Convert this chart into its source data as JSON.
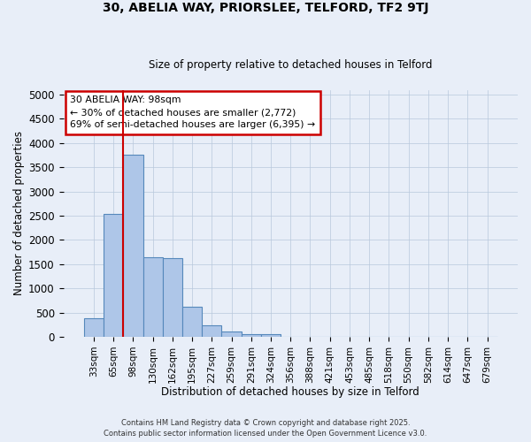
{
  "title1": "30, ABELIA WAY, PRIORSLEE, TELFORD, TF2 9TJ",
  "title2": "Size of property relative to detached houses in Telford",
  "xlabel": "Distribution of detached houses by size in Telford",
  "ylabel": "Number of detached properties",
  "categories": [
    "33sqm",
    "65sqm",
    "98sqm",
    "130sqm",
    "162sqm",
    "195sqm",
    "227sqm",
    "259sqm",
    "291sqm",
    "324sqm",
    "356sqm",
    "388sqm",
    "421sqm",
    "453sqm",
    "485sqm",
    "518sqm",
    "550sqm",
    "582sqm",
    "614sqm",
    "647sqm",
    "679sqm"
  ],
  "values": [
    390,
    2530,
    3760,
    1650,
    1630,
    620,
    240,
    110,
    55,
    50,
    0,
    0,
    0,
    0,
    0,
    0,
    0,
    0,
    0,
    0,
    0
  ],
  "bar_color": "#aec6e8",
  "bar_edge_color": "#5588bb",
  "red_line_index": 2,
  "annotation_text": "30 ABELIA WAY: 98sqm\n← 30% of detached houses are smaller (2,772)\n69% of semi-detached houses are larger (6,395) →",
  "annotation_box_color": "#ffffff",
  "annotation_box_edge": "#cc0000",
  "red_line_color": "#cc0000",
  "footer1": "Contains HM Land Registry data © Crown copyright and database right 2025.",
  "footer2": "Contains public sector information licensed under the Open Government Licence v3.0.",
  "background_color": "#e8eef8",
  "ylim": [
    0,
    5100
  ],
  "yticks": [
    0,
    500,
    1000,
    1500,
    2000,
    2500,
    3000,
    3500,
    4000,
    4500,
    5000
  ]
}
